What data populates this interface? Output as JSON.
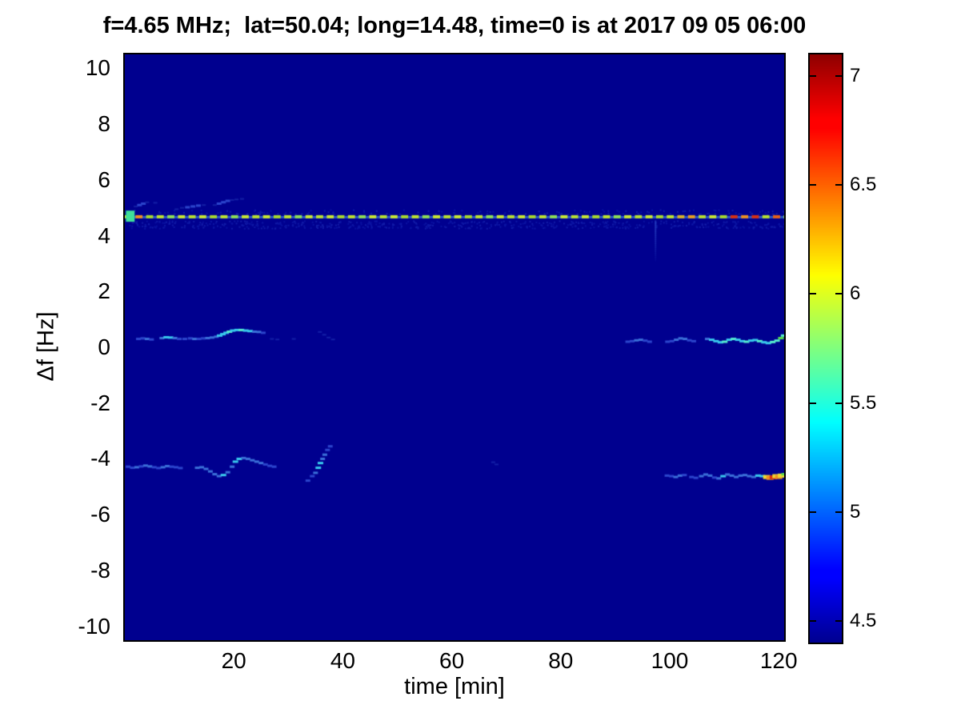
{
  "title": "f=4.65 MHz;  lat=50.04; long=14.48, time=0 is at 2017 09 05 06:00",
  "chart_data": {
    "type": "heatmap",
    "title": "f=4.65 MHz;  lat=50.04; long=14.48, time=0 is at 2017 09 05 06:00",
    "xlabel": "time [min]",
    "ylabel": "Δf [Hz]",
    "xlim": [
      0,
      121
    ],
    "ylim": [
      -10.5,
      10.5
    ],
    "x_ticks": [
      "20",
      "40",
      "60",
      "80",
      "100",
      "120"
    ],
    "y_ticks": [
      "10",
      "8",
      "6",
      "4",
      "2",
      "0",
      "-2",
      "-4",
      "-6",
      "-8",
      "-10"
    ],
    "grid": false,
    "legend": false,
    "colorbar": {
      "colormap": "jet",
      "min": 4.4,
      "max": 7.1,
      "tick_labels": [
        "7",
        "6.5",
        "6",
        "5.5",
        "5",
        "4.5"
      ]
    },
    "background_color": "#00008F",
    "palette": [
      "#131fa6",
      "#2b45cc",
      "#3a6fd8",
      "#38c8ec",
      "#55eccd",
      "#58dc50",
      "#ecd832",
      "#f09020",
      "#d83010"
    ],
    "noise_bands": [
      {
        "t0": 0.3,
        "t1": 121,
        "f0": 4.28,
        "f1": 4.55,
        "count": 560,
        "colors": [
          "#0a12a2",
          "#121ca8",
          "#0d17a5"
        ],
        "seed": 7
      },
      {
        "t0": 0.3,
        "t1": 121,
        "f0": 4.78,
        "f1": 4.95,
        "count": 150,
        "colors": [
          "#0a12a2",
          "#111ba7"
        ],
        "seed": 13
      }
    ],
    "carrier_line": {
      "f": 4.68,
      "t0": 0,
      "t1": 121,
      "dash_min": 1.3,
      "gap_min": 0.65,
      "colors": [
        "#b9e130",
        "#c9e832",
        "#a9d92c",
        "#bfe42e",
        "#8fdf55",
        "#c9e832"
      ],
      "underlay_color": "#2b58c8",
      "start_blob": {
        "t0": 0.2,
        "t1": 1.8,
        "f0": 4.5,
        "f1": 4.9,
        "color": "#3fe09a"
      },
      "hot_segments": [
        {
          "t": 2.1,
          "color": "#f09020"
        },
        {
          "t": 101.8,
          "color": "#d8b428"
        },
        {
          "t": 104.0,
          "color": "#e8a020"
        },
        {
          "t": 111.3,
          "color": "#d83010"
        },
        {
          "t": 113.8,
          "color": "#f09020"
        },
        {
          "t": 115.7,
          "color": "#d83010"
        },
        {
          "t": 118.2,
          "color": "#e86018"
        }
      ]
    },
    "vertical_streak": {
      "t": 97.4,
      "f_top": 4.55,
      "f_bottom": 3.1,
      "color": "#3050d0"
    },
    "traces": [
      {
        "name": "upper-left-wisps",
        "points": [
          [
            2,
            5.05,
            0
          ],
          [
            2.7,
            5.1,
            1
          ],
          [
            3.4,
            5.15,
            1
          ],
          [
            4.1,
            5.2,
            0
          ],
          [
            5.6,
            5.18,
            0
          ],
          [
            9.5,
            4.95,
            0
          ],
          [
            10.5,
            5.0,
            0
          ],
          [
            11.5,
            5.02,
            1
          ],
          [
            12.5,
            5.05,
            1
          ],
          [
            13.5,
            5.08,
            1
          ],
          [
            14.5,
            5.1,
            0
          ],
          [
            16.5,
            5.1,
            0
          ],
          [
            17.3,
            5.15,
            1
          ],
          [
            18.1,
            5.2,
            1
          ],
          [
            18.9,
            5.25,
            1
          ],
          [
            19.7,
            5.28,
            0
          ],
          [
            20.5,
            5.3,
            0
          ],
          [
            21.5,
            5.32,
            0
          ]
        ]
      },
      {
        "name": "mid-left-trace",
        "points": [
          [
            2.5,
            0.3,
            1
          ],
          [
            3.3,
            0.32,
            1
          ],
          [
            4.1,
            0.3,
            2
          ],
          [
            4.9,
            0.28,
            1
          ],
          [
            6.8,
            0.33,
            2
          ],
          [
            7.6,
            0.36,
            3
          ],
          [
            8.4,
            0.35,
            3
          ],
          [
            9.2,
            0.33,
            2
          ],
          [
            10,
            0.3,
            1
          ],
          [
            11,
            0.3,
            1
          ],
          [
            12,
            0.32,
            1
          ],
          [
            12.8,
            0.3,
            2
          ],
          [
            13.6,
            0.3,
            1
          ],
          [
            14.4,
            0.32,
            1
          ],
          [
            15.2,
            0.33,
            2
          ],
          [
            16,
            0.35,
            2
          ],
          [
            16.8,
            0.38,
            2
          ],
          [
            17.4,
            0.42,
            3
          ],
          [
            18,
            0.47,
            3
          ],
          [
            18.6,
            0.52,
            3
          ],
          [
            19.2,
            0.56,
            4
          ],
          [
            19.8,
            0.6,
            3
          ],
          [
            20.6,
            0.62,
            3
          ],
          [
            21.4,
            0.62,
            4
          ],
          [
            22.2,
            0.6,
            3
          ],
          [
            23,
            0.58,
            3
          ],
          [
            23.8,
            0.56,
            2
          ],
          [
            24.6,
            0.55,
            2
          ],
          [
            25.4,
            0.52,
            1
          ],
          [
            27,
            0.3,
            0
          ],
          [
            28,
            0.28,
            0
          ],
          [
            31,
            0.3,
            0
          ],
          [
            35.8,
            0.55,
            0
          ],
          [
            36.6,
            0.45,
            0
          ],
          [
            37.4,
            0.35,
            0
          ],
          [
            38.2,
            0.28,
            0
          ]
        ]
      },
      {
        "name": "mid-right-trace",
        "points": [
          [
            92.3,
            0.2,
            1
          ],
          [
            93.1,
            0.22,
            1
          ],
          [
            93.9,
            0.25,
            2
          ],
          [
            94.7,
            0.27,
            2
          ],
          [
            95.5,
            0.24,
            1
          ],
          [
            96.3,
            0.2,
            1
          ],
          [
            99.6,
            0.2,
            1
          ],
          [
            100.4,
            0.22,
            1
          ],
          [
            101.2,
            0.27,
            2
          ],
          [
            102,
            0.32,
            2
          ],
          [
            102.8,
            0.3,
            2
          ],
          [
            103.6,
            0.25,
            1
          ],
          [
            104.4,
            0.22,
            1
          ],
          [
            106.9,
            0.3,
            2
          ],
          [
            107.7,
            0.27,
            3
          ],
          [
            108.5,
            0.22,
            3
          ],
          [
            109.3,
            0.18,
            3
          ],
          [
            110.1,
            0.2,
            4
          ],
          [
            110.9,
            0.27,
            3
          ],
          [
            111.7,
            0.3,
            4
          ],
          [
            112.5,
            0.27,
            3
          ],
          [
            113.3,
            0.22,
            3
          ],
          [
            114.1,
            0.2,
            4
          ],
          [
            114.9,
            0.24,
            3
          ],
          [
            115.7,
            0.26,
            3
          ],
          [
            116.5,
            0.22,
            4
          ],
          [
            117.3,
            0.18,
            3
          ],
          [
            118.1,
            0.15,
            3
          ],
          [
            118.9,
            0.19,
            4
          ],
          [
            119.7,
            0.24,
            4
          ],
          [
            120.4,
            0.33,
            5
          ],
          [
            120.9,
            0.42,
            4
          ]
        ]
      },
      {
        "name": "lower-left-trace",
        "points": [
          [
            0.6,
            -4.28,
            1
          ],
          [
            1.4,
            -4.32,
            1
          ],
          [
            2.2,
            -4.3,
            2
          ],
          [
            3,
            -4.27,
            1
          ],
          [
            3.8,
            -4.24,
            2
          ],
          [
            4.6,
            -4.27,
            2
          ],
          [
            5.4,
            -4.3,
            1
          ],
          [
            6.2,
            -4.33,
            1
          ],
          [
            7,
            -4.3,
            2
          ],
          [
            7.8,
            -4.26,
            2
          ],
          [
            8.6,
            -4.28,
            1
          ],
          [
            9.4,
            -4.3,
            1
          ],
          [
            10.2,
            -4.33,
            1
          ],
          [
            13.3,
            -4.32,
            2
          ],
          [
            14.1,
            -4.3,
            2
          ],
          [
            14.9,
            -4.36,
            2
          ],
          [
            15.7,
            -4.45,
            2
          ],
          [
            16.5,
            -4.55,
            2
          ],
          [
            17.3,
            -4.62,
            2
          ],
          [
            18.1,
            -4.58,
            3
          ],
          [
            18.9,
            -4.48,
            2
          ],
          [
            19.7,
            -4.28,
            2
          ],
          [
            20.3,
            -4.1,
            3
          ],
          [
            21,
            -4.0,
            3
          ],
          [
            21.8,
            -3.97,
            2
          ],
          [
            22.6,
            -4.0,
            2
          ],
          [
            23.4,
            -4.05,
            2
          ],
          [
            24.2,
            -4.1,
            2
          ],
          [
            25,
            -4.15,
            2
          ],
          [
            25.8,
            -4.2,
            1
          ],
          [
            26.6,
            -4.25,
            1
          ],
          [
            27.4,
            -4.28,
            1
          ],
          [
            33.6,
            -4.78,
            1
          ],
          [
            34.4,
            -4.62,
            1
          ],
          [
            35,
            -4.5,
            2
          ],
          [
            35.5,
            -4.32,
            3
          ],
          [
            35.9,
            -4.15,
            3
          ],
          [
            36.3,
            -4.0,
            2
          ],
          [
            36.7,
            -3.85,
            2
          ],
          [
            37.2,
            -3.68,
            1
          ],
          [
            37.7,
            -3.55,
            1
          ]
        ]
      },
      {
        "name": "lower-right-trace",
        "points": [
          [
            99.5,
            -4.6,
            1
          ],
          [
            100.3,
            -4.62,
            1
          ],
          [
            101.1,
            -4.65,
            2
          ],
          [
            101.9,
            -4.6,
            2
          ],
          [
            102.7,
            -4.58,
            1
          ],
          [
            104,
            -4.65,
            1
          ],
          [
            104.8,
            -4.68,
            1
          ],
          [
            105.8,
            -4.62,
            2
          ],
          [
            106.6,
            -4.56,
            2
          ],
          [
            107.4,
            -4.6,
            2
          ],
          [
            108.2,
            -4.67,
            1
          ],
          [
            109,
            -4.7,
            2
          ],
          [
            109.8,
            -4.62,
            3
          ],
          [
            110.6,
            -4.56,
            2
          ],
          [
            111.4,
            -4.6,
            2
          ],
          [
            112.2,
            -4.65,
            2
          ],
          [
            113,
            -4.6,
            2
          ],
          [
            113.8,
            -4.58,
            2
          ],
          [
            114.6,
            -4.62,
            2
          ],
          [
            115.4,
            -4.65,
            2
          ],
          [
            116.2,
            -4.6,
            3
          ],
          [
            117,
            -4.62,
            3
          ],
          [
            117.8,
            -4.65,
            6
          ],
          [
            118.4,
            -4.68,
            7
          ],
          [
            119,
            -4.66,
            8
          ],
          [
            119.5,
            -4.62,
            6
          ],
          [
            120,
            -4.65,
            7
          ],
          [
            120.5,
            -4.6,
            6
          ],
          [
            121,
            -4.55,
            5
          ]
        ]
      },
      {
        "name": "mid-faint-dot",
        "points": [
          [
            67.6,
            -4.12,
            0
          ],
          [
            68.2,
            -4.2,
            0
          ]
        ]
      }
    ]
  }
}
